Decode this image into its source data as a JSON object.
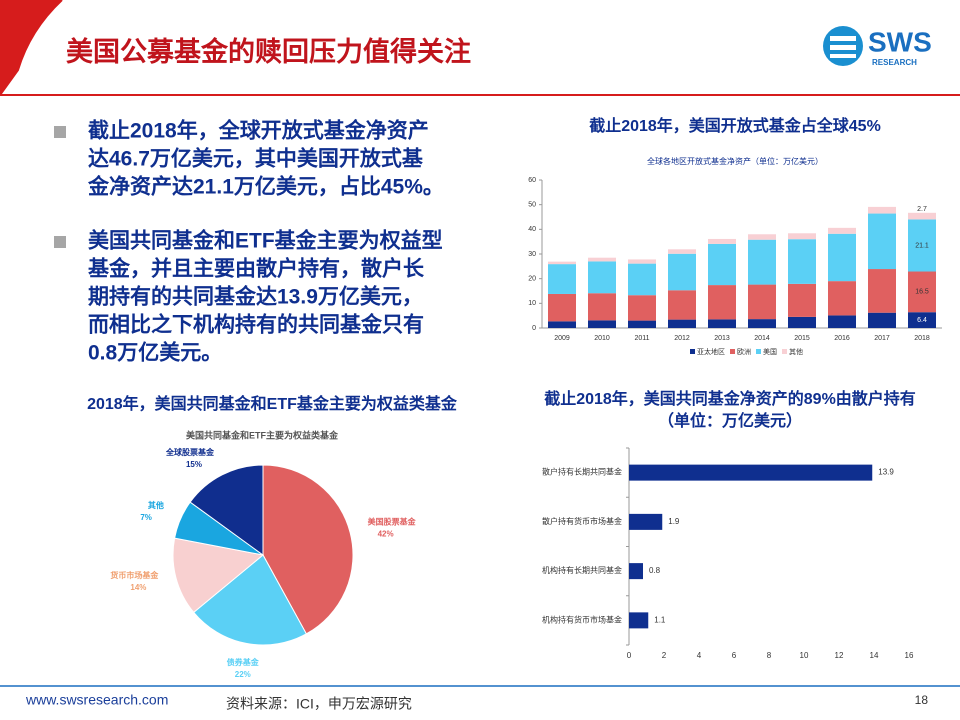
{
  "header": {
    "title": "美国公募基金的赎回压力值得关注",
    "logo": "SWS",
    "logo_sub": "RESEARCH"
  },
  "bullets": [
    [
      "截止2018年，全球开放式基金净资产",
      "达46.7万亿美元，其中美国开放式基",
      "金净资产达21.1万亿美元，占比45%。"
    ],
    [
      "美国共同基金和ETF基金主要为权益型",
      "基金，并且主要由散户持有，散户长",
      "期持有的共同基金达13.9万亿美元，",
      "而相比之下机构持有的共同基金只有",
      "0.8万亿美元。"
    ]
  ],
  "footer": {
    "url": "www.swsresearch.com",
    "source": "资料来源：ICI，申万宏源研究",
    "page": "18"
  },
  "chart_data": [
    {
      "type": "stacked-bar",
      "heading": "截止2018年，美国开放式基金占全球45%",
      "title": "全球各地区开放式基金净资产（单位：万亿美元）",
      "categories": [
        "2009",
        "2010",
        "2011",
        "2012",
        "2013",
        "2014",
        "2015",
        "2016",
        "2017",
        "2018"
      ],
      "series": [
        {
          "name": "亚太地区",
          "color": "#0f2f8f",
          "values": [
            2.7,
            3.1,
            3.0,
            3.4,
            3.5,
            3.6,
            4.5,
            5.1,
            6.2,
            6.4
          ]
        },
        {
          "name": "欧洲",
          "color": "#e06060",
          "values": [
            11.1,
            11.0,
            10.3,
            11.9,
            13.9,
            14.0,
            13.4,
            13.9,
            17.7,
            16.5
          ]
        },
        {
          "name": "美国",
          "color": "#5bd0f5",
          "values": [
            12.1,
            12.9,
            12.8,
            14.8,
            16.7,
            18.2,
            18.1,
            19.2,
            22.5,
            21.1
          ]
        },
        {
          "name": "其他",
          "color": "#f8d0d4",
          "values": [
            1.0,
            1.5,
            1.7,
            1.8,
            2.0,
            2.2,
            2.4,
            2.4,
            2.7,
            2.7
          ]
        }
      ],
      "ylim": [
        0,
        60
      ],
      "yticks": [
        0,
        10,
        20,
        30,
        40,
        50,
        60
      ],
      "grid": false,
      "legend": "bottom"
    },
    {
      "type": "pie",
      "heading": "2018年，美国共同基金和ETF基金主要为权益类基金",
      "title": "美国共同基金和ETF主要为权益类基金",
      "categories": [
        "美国股票基金",
        "债券基金",
        "货币市场基金",
        "其他",
        "全球股票基金"
      ],
      "values": [
        42,
        22,
        14,
        7,
        15
      ],
      "value_labels": [
        "42%",
        "22%",
        "14%",
        "7%",
        "15%"
      ],
      "colors": [
        "#e06060",
        "#5bd0f5",
        "#f8d0d0",
        "#1aa6e0",
        "#102e8e"
      ]
    },
    {
      "type": "hbar",
      "heading": "截止2018年，美国共同基金净资产的89%由散户持有",
      "subtitle": "（单位：万亿美元）",
      "categories": [
        "散户持有长期共同基金",
        "散户持有货币市场基金",
        "机构持有长期共同基金",
        "机构持有货币市场基金"
      ],
      "values": [
        13.9,
        1.9,
        0.8,
        1.1
      ],
      "color": "#0f2f8f",
      "xlim": [
        0,
        16
      ],
      "xticks": [
        0,
        2,
        4,
        6,
        8,
        10,
        12,
        14,
        16
      ]
    }
  ]
}
